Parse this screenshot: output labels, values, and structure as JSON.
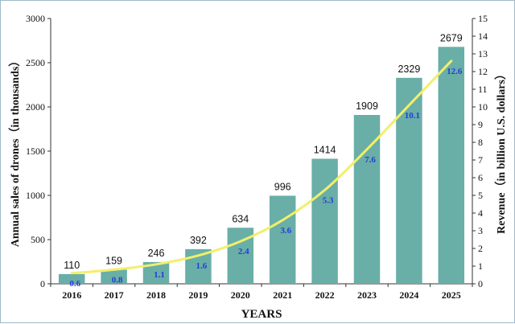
{
  "chart_data": {
    "type": "bar",
    "categories": [
      "2016",
      "2017",
      "2018",
      "2019",
      "2020",
      "2021",
      "2022",
      "2023",
      "2024",
      "2025"
    ],
    "series": [
      {
        "name": "",
        "axis": "left",
        "kind": "bar",
        "color": "#6aaea8",
        "values": [
          110,
          159,
          246,
          392,
          634,
          996,
          1414,
          1909,
          2329,
          2679
        ]
      },
      {
        "name": "",
        "axis": "right",
        "kind": "line",
        "color": "#f2ef6a",
        "values": [
          0.6,
          0.8,
          1.1,
          1.6,
          2.4,
          3.6,
          5.3,
          7.6,
          10.1,
          12.6
        ]
      }
    ],
    "xlabel": "YEARS",
    "ylabel": "Annual sales of drones（in thousands）",
    "ylabel_right": "Revenue（in billion U.S. dollars）",
    "ylim": [
      0,
      3000
    ],
    "yticks": [
      0,
      500,
      1000,
      1500,
      2000,
      2500,
      3000
    ],
    "ylim_right": [
      0,
      15
    ],
    "yticks_right": [
      0,
      1,
      2,
      3,
      4,
      5,
      6,
      7,
      8,
      9,
      10,
      11,
      12,
      13,
      14,
      15
    ],
    "revenue_label_color": "#1f3fd6",
    "grid": false,
    "legend": "none"
  }
}
